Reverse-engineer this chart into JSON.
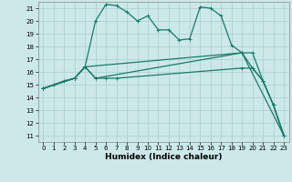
{
  "title": "",
  "xlabel": "Humidex (Indice chaleur)",
  "xlim": [
    -0.5,
    23.5
  ],
  "ylim": [
    10.5,
    21.5
  ],
  "yticks": [
    11,
    12,
    13,
    14,
    15,
    16,
    17,
    18,
    19,
    20,
    21
  ],
  "xticks": [
    0,
    1,
    2,
    3,
    4,
    5,
    6,
    7,
    8,
    9,
    10,
    11,
    12,
    13,
    14,
    15,
    16,
    17,
    18,
    19,
    20,
    21,
    22,
    23
  ],
  "background_color": "#cce8e8",
  "grid_color": "#aacfcf",
  "line_color": "#1a7a6a",
  "line1_x": [
    0,
    1,
    2,
    3,
    4,
    5,
    6,
    7,
    8,
    9,
    10,
    11,
    12,
    13,
    14,
    15,
    16,
    17,
    18,
    19,
    20,
    21,
    22,
    23
  ],
  "line1_y": [
    14.7,
    15.0,
    15.3,
    15.5,
    16.4,
    20.0,
    21.3,
    21.2,
    20.7,
    20.0,
    20.4,
    19.3,
    19.3,
    18.5,
    18.6,
    21.1,
    21.0,
    20.4,
    18.1,
    17.5,
    16.3,
    15.3,
    13.4,
    11.0
  ],
  "line2_x": [
    0,
    3,
    4,
    5,
    6,
    7,
    19,
    20,
    21,
    22,
    23
  ],
  "line2_y": [
    14.7,
    15.5,
    16.4,
    15.5,
    15.5,
    15.5,
    16.3,
    16.3,
    15.3,
    13.4,
    11.0
  ],
  "line3_x": [
    0,
    3,
    4,
    5,
    19,
    20,
    21,
    22,
    23
  ],
  "line3_y": [
    14.7,
    15.5,
    16.4,
    15.5,
    17.5,
    17.5,
    15.3,
    13.4,
    11.0
  ],
  "line4_x": [
    0,
    3,
    4,
    19,
    23
  ],
  "line4_y": [
    14.7,
    15.5,
    16.4,
    17.5,
    11.0
  ],
  "tick_fontsize": 5.0,
  "xlabel_fontsize": 6.5,
  "lw": 0.9,
  "ms": 1.8
}
